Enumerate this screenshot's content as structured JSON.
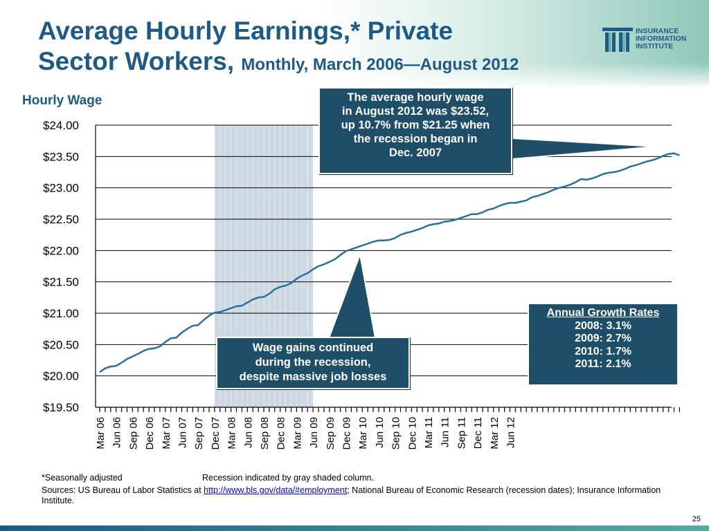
{
  "slide": {
    "title_line1": "Average Hourly Earnings,* Private",
    "title_line2_main": "Sector Workers, ",
    "title_line2_sub": "Monthly, March 2006—August 2012",
    "logo_line1": "INSURANCE",
    "logo_line2": "INFORMATION",
    "logo_line3": "INSTITUTE",
    "page_number": "25",
    "accent_color": "#1e5a84",
    "box_color": "#1f4e68"
  },
  "callouts": {
    "top_line1": "The average hourly wage",
    "top_line2": "in August 2012 was $23.52,",
    "top_line3": "up 10.7% from $21.25 when",
    "top_line4": "the recession began in",
    "top_line5": "Dec. 2007",
    "bottom_line1": "Wage gains continued",
    "bottom_line2": "during the recession,",
    "bottom_line3": "despite massive job losses"
  },
  "growth_box": {
    "title": "Annual Growth Rates",
    "rows": [
      "2008: 3.1%",
      "2009: 2.7%",
      "2010: 1.7%",
      "2011: 2.1%"
    ]
  },
  "footnotes": {
    "seasonal": "*Seasonally adjusted",
    "recession": "Recession indicated by gray shaded column.",
    "sources_prefix": "Sources: US Bureau of Labor Statistics at ",
    "sources_link": "http://www.bls.gov/data/#employment",
    "sources_suffix": "; National Bureau of Economic Research (recession dates); Insurance Information Institute."
  },
  "chart_data": {
    "type": "line",
    "ylabel": "Hourly Wage",
    "ylim": [
      19.5,
      24.0
    ],
    "yticks": [
      "$24.00",
      "$23.50",
      "$23.00",
      "$22.50",
      "$22.00",
      "$21.50",
      "$21.00",
      "$20.50",
      "$20.00",
      "$19.50"
    ],
    "ytick_values": [
      24.0,
      23.5,
      23.0,
      22.5,
      22.0,
      21.5,
      21.0,
      20.5,
      20.0,
      19.5
    ],
    "xtick_labels": [
      "Mar 06",
      "Jun 06",
      "Sep 06",
      "Dec 06",
      "Mar 07",
      "Jun 07",
      "Sep 07",
      "Dec 07",
      "Mar 08",
      "Jun 08",
      "Sep 08",
      "Dec 08",
      "Mar 09",
      "Jun 09",
      "Sep 09",
      "Dec 09",
      "Mar 10",
      "Jun 10",
      "Sep 10",
      "Dec 10",
      "Mar 11",
      "Jun 11",
      "Sep 11",
      "Dec 11",
      "Mar 12",
      "Jun 12"
    ],
    "recession": {
      "start": "Dec 07",
      "end": "Jun 09"
    },
    "gridlines": "horizontal",
    "line_color": "#2a6f9a",
    "recession_color": "#cdd8e2",
    "series": [
      {
        "values": [
          20.06,
          20.12,
          20.15,
          20.16,
          20.21,
          20.27,
          20.31,
          20.35,
          20.4,
          20.43,
          20.44,
          20.47,
          20.54,
          20.6,
          20.61,
          20.69,
          20.75,
          20.8,
          20.81,
          20.89,
          20.96,
          21.01,
          21.02,
          21.05,
          21.08,
          21.11,
          21.12,
          21.17,
          21.22,
          21.25,
          21.26,
          21.31,
          21.38,
          21.42,
          21.44,
          21.48,
          21.55,
          21.6,
          21.64,
          21.7,
          21.75,
          21.78,
          21.82,
          21.86,
          21.93,
          21.99,
          22.02,
          22.05,
          22.08,
          22.11,
          22.14,
          22.16,
          22.16,
          22.17,
          22.2,
          22.25,
          22.28,
          22.3,
          22.33,
          22.36,
          22.4,
          22.42,
          22.43,
          22.46,
          22.47,
          22.49,
          22.52,
          22.55,
          22.58,
          22.58,
          22.61,
          22.65,
          22.67,
          22.71,
          22.74,
          22.76,
          22.76,
          22.78,
          22.8,
          22.85,
          22.87,
          22.9,
          22.93,
          22.97,
          23.0,
          23.02,
          23.05,
          23.09,
          23.14,
          23.13,
          23.15,
          23.18,
          23.22,
          23.24,
          23.25,
          23.27,
          23.3,
          23.34,
          23.36,
          23.39,
          23.42,
          23.44,
          23.47,
          23.51,
          23.54,
          23.55,
          23.52
        ]
      }
    ]
  }
}
